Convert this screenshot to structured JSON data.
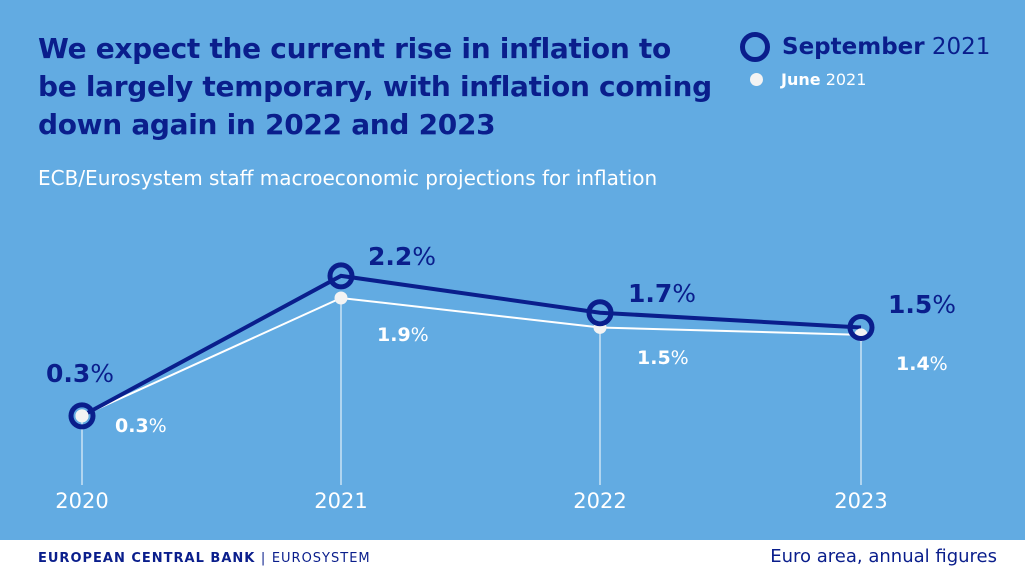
{
  "chart_data": {
    "type": "line",
    "title": "We expect the current rise in inflation to be largely temporary, with inflation coming down again in 2022 and 2023",
    "subtitle": "ECB/Eurosystem staff macroeconomic projections for inflation",
    "categories": [
      "2020",
      "2021",
      "2022",
      "2023"
    ],
    "series": [
      {
        "name": "September 2021",
        "name_bold": "September",
        "name_rest": "2021",
        "values": [
          0.3,
          2.2,
          1.7,
          1.5
        ],
        "color": "#0a1e8c",
        "labels": [
          "0.3",
          "2.2",
          "1.7",
          "1.5"
        ]
      },
      {
        "name": "June 2021",
        "name_bold": "June",
        "name_rest": "2021",
        "values": [
          0.3,
          1.9,
          1.5,
          1.4
        ],
        "color": "#ffffff",
        "labels": [
          "0.3",
          "1.9",
          "1.5",
          "1.4"
        ]
      }
    ],
    "unit": "%",
    "legend": "top-right",
    "grid": false
  },
  "footer": {
    "bank": "EUROPEAN CENTRAL BANK",
    "separator": "|",
    "system": "EUROSYSTEM",
    "note": "Euro area, annual figures"
  },
  "colors": {
    "background": "#62abe2",
    "primary": "#0a1e8c",
    "secondary": "#ffffff"
  }
}
